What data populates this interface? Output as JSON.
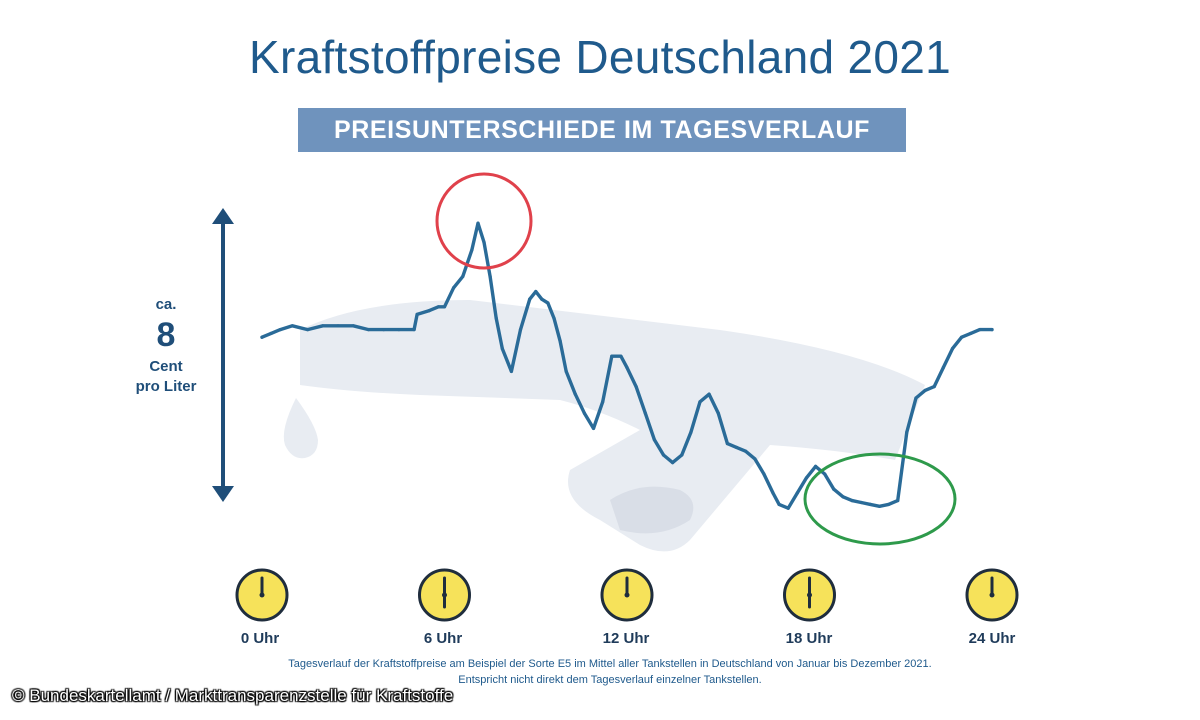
{
  "title": "Kraftstoffpreise Deutschland 2021",
  "subtitle": "PREISUNTERSCHIEDE IM TAGESVERLAUF",
  "range_label": {
    "prefix": "ca.",
    "value": "8",
    "unit_line1": "Cent",
    "unit_line2": "pro Liter"
  },
  "footnote": {
    "line1": "Tagesverlauf der Kraftstoffpreise am Beispiel der Sorte E5 im Mittel aller Tankstellen in Deutschland von Januar bis Dezember 2021.",
    "line2": "Entspricht nicht direkt dem Tagesverlauf einzelner Tankstellen."
  },
  "copyright": "© Bundeskartellamt / Markttransparenzstelle für Kraftstoffe",
  "colors": {
    "line": "#2a6b98",
    "arrow": "#1f4e79",
    "clock_fill": "#f6e25a",
    "highlight_high": "#e0414b",
    "highlight_low": "#2e9a4b",
    "band": "#6f93bd"
  },
  "highlights": {
    "high": "red-circle",
    "low": "green-ellipse"
  },
  "chart_data": {
    "type": "line",
    "title": "Kraftstoffpreise Deutschland 2021",
    "xlabel": "",
    "ylabel": "",
    "x_ticks": [
      "0 Uhr",
      "6 Uhr",
      "12 Uhr",
      "18 Uhr",
      "24 Uhr"
    ],
    "x_range": [
      0,
      24
    ],
    "y_range_note": "ca. 8 Cent pro Liter",
    "ylim": [
      0,
      8
    ],
    "series": [
      {
        "name": "",
        "x": [
          0,
          0.3,
          0.6,
          1,
          1.5,
          2,
          2.5,
          3,
          3.5,
          4,
          4.5,
          5,
          5.1,
          5.5,
          5.8,
          6,
          6.3,
          6.6,
          6.9,
          7.1,
          7.3,
          7.5,
          7.7,
          7.9,
          8.2,
          8.5,
          8.8,
          9,
          9.2,
          9.4,
          9.6,
          9.8,
          10,
          10.3,
          10.6,
          10.9,
          11.2,
          11.5,
          11.8,
          12,
          12.3,
          12.6,
          12.9,
          13.2,
          13.5,
          13.8,
          14.1,
          14.4,
          14.7,
          15,
          15.3,
          15.6,
          15.9,
          16.2,
          16.5,
          16.8,
          17,
          17.3,
          17.6,
          17.9,
          18.2,
          18.5,
          18.8,
          19.1,
          19.4,
          19.7,
          20,
          20.3,
          20.6,
          20.9,
          21.2,
          21.5,
          21.8,
          22.1,
          22.4,
          22.7,
          23,
          23.3,
          23.6,
          24
        ],
        "values": [
          4.6,
          4.7,
          4.8,
          4.9,
          4.8,
          4.9,
          4.9,
          4.9,
          4.8,
          4.8,
          4.8,
          4.8,
          5.2,
          5.3,
          5.4,
          5.4,
          5.9,
          6.2,
          6.9,
          7.6,
          7.1,
          6.2,
          5.1,
          4.3,
          3.7,
          4.8,
          5.6,
          5.8,
          5.6,
          5.5,
          5.1,
          4.5,
          3.7,
          3.1,
          2.6,
          2.2,
          2.9,
          4.1,
          4.1,
          3.8,
          3.3,
          2.6,
          1.9,
          1.5,
          1.3,
          1.5,
          2.1,
          2.9,
          3.1,
          2.6,
          1.8,
          1.7,
          1.6,
          1.4,
          1.0,
          0.5,
          0.2,
          0.1,
          0.5,
          0.9,
          1.2,
          1.0,
          0.6,
          0.4,
          0.3,
          0.25,
          0.2,
          0.15,
          0.2,
          0.3,
          2.1,
          3.0,
          3.2,
          3.3,
          3.8,
          4.3,
          4.6,
          4.7,
          4.8,
          4.8
        ]
      }
    ]
  }
}
